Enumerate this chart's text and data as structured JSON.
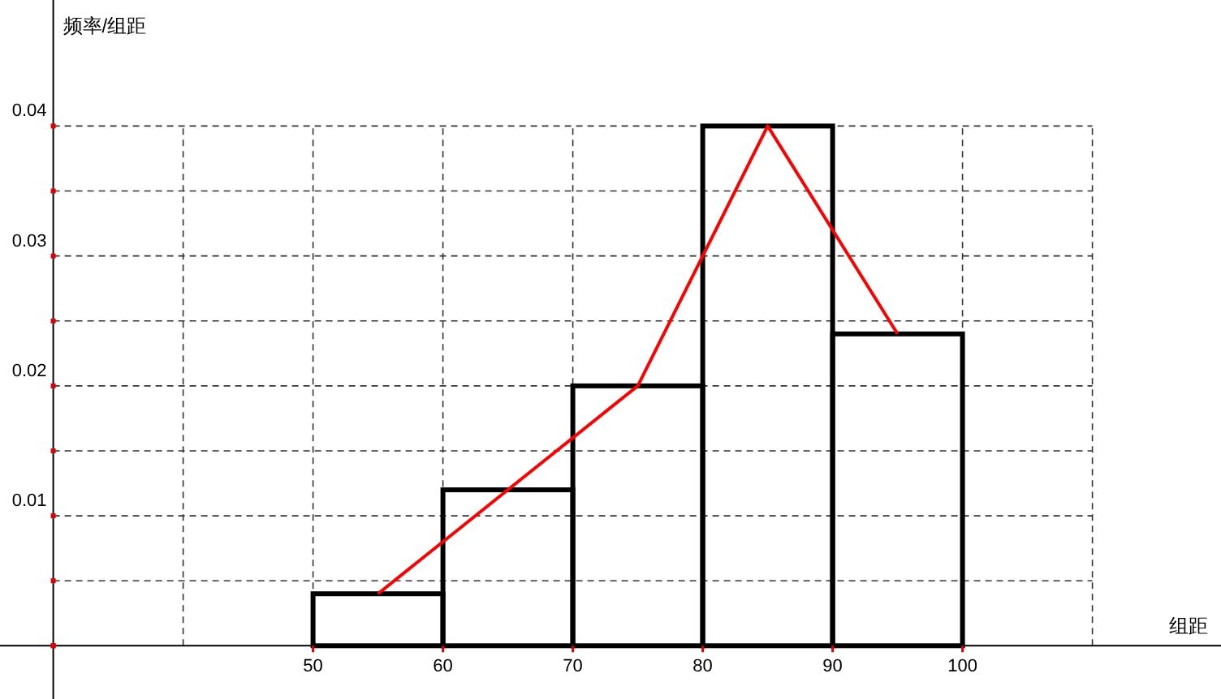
{
  "chart_data": {
    "type": "histogram",
    "xlabel": "组距",
    "ylabel": "频率/组距",
    "xlim": [
      25.9,
      119.9
    ],
    "ylim": [
      -0.0041,
      0.0497
    ],
    "xticks": [
      {
        "value": 30,
        "label": null
      },
      {
        "value": 40,
        "label": null
      },
      50,
      60,
      70,
      80,
      90,
      100,
      {
        "value": 110,
        "label": null
      }
    ],
    "yticks": [
      {
        "value": 0,
        "label": null
      },
      {
        "value": 0.005,
        "label": null
      },
      0.01,
      {
        "value": 0.015,
        "label": null
      },
      0.02,
      {
        "value": 0.025,
        "label": null
      },
      0.03,
      {
        "value": 0.035,
        "label": null
      },
      0.04
    ],
    "grid": true,
    "series": [
      {
        "bins": [
          50,
          60,
          70,
          80,
          90,
          100
        ],
        "values": [
          0.004,
          0.012,
          0.02,
          0.04,
          0.024
        ],
        "color": "#000000"
      },
      {
        "type": "line",
        "x": [
          55,
          65,
          75,
          85,
          95
        ],
        "values": [
          0.004,
          0.012,
          0.02,
          0.04,
          0.024
        ],
        "color": "#ff0000"
      }
    ]
  }
}
